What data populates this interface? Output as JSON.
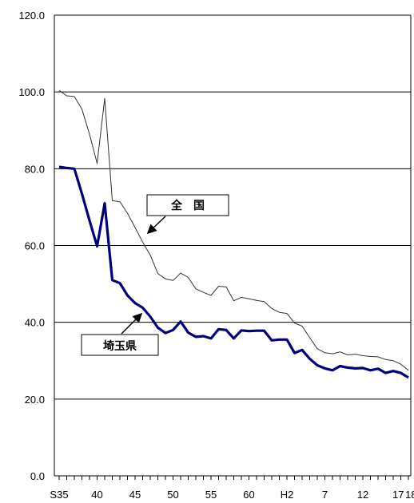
{
  "chart_data": {
    "type": "line",
    "title": "",
    "xlabel": "",
    "ylabel": "",
    "ylim": [
      0,
      120
    ],
    "yticks": [
      "0.0",
      "20.0",
      "40.0",
      "60.0",
      "80.0",
      "100.0",
      "120.0"
    ],
    "grid": true,
    "xtick_labels": [
      {
        "index": 0,
        "label": "S35"
      },
      {
        "index": 5,
        "label": "40"
      },
      {
        "index": 10,
        "label": "45"
      },
      {
        "index": 15,
        "label": "50"
      },
      {
        "index": 20,
        "label": "55"
      },
      {
        "index": 25,
        "label": "60"
      },
      {
        "index": 30,
        "label": "H2"
      },
      {
        "index": 35,
        "label": "7"
      },
      {
        "index": 40,
        "label": "12"
      },
      {
        "index": 45,
        "label": "17"
      },
      {
        "index": 46,
        "label": "18"
      }
    ],
    "x_count": 47,
    "series": [
      {
        "name": "全国",
        "color": "#333333",
        "values": [
          100.4,
          99.0,
          98.8,
          95.5,
          89.0,
          81.4,
          98.3,
          71.7,
          71.4,
          68.4,
          64.7,
          60.9,
          57.5,
          52.7,
          51.3,
          50.9,
          52.8,
          51.7,
          48.7,
          47.8,
          47.0,
          49.4,
          49.2,
          45.6,
          46.5,
          46.1,
          45.7,
          45.4,
          43.6,
          42.6,
          42.3,
          39.8,
          39.0,
          36.0,
          33.1,
          32.1,
          31.8,
          32.3,
          31.5,
          31.7,
          31.3,
          31.1,
          31.0,
          30.3,
          30.0,
          29.1,
          27.5
        ]
      },
      {
        "name": "埼玉県",
        "color": "#00007a",
        "values": [
          80.5,
          80.2,
          80.0,
          73.5,
          66.5,
          59.8,
          71.0,
          51.0,
          50.2,
          47.0,
          45.0,
          43.8,
          41.5,
          38.6,
          37.2,
          38.0,
          40.2,
          37.3,
          36.2,
          36.4,
          35.8,
          38.2,
          38.0,
          35.8,
          37.9,
          37.7,
          37.8,
          37.8,
          35.3,
          35.5,
          35.5,
          32.0,
          32.8,
          30.5,
          28.8,
          28.0,
          27.5,
          28.6,
          28.2,
          28.0,
          28.1,
          27.5,
          27.9,
          26.8,
          27.3,
          26.8,
          25.6
        ]
      }
    ],
    "annotations": [
      "全　国",
      "埼玉県"
    ]
  }
}
